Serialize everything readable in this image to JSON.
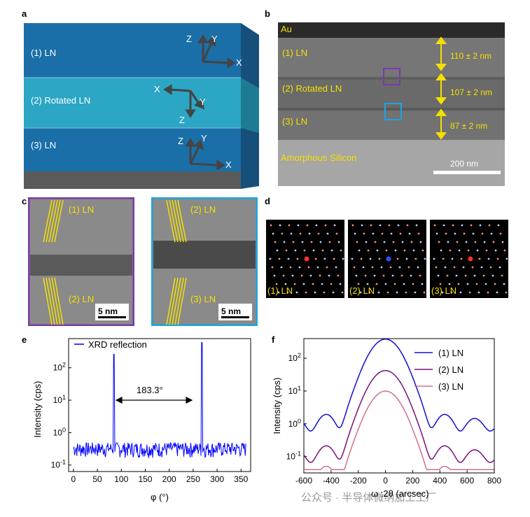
{
  "panels": {
    "a": "a",
    "b": "b",
    "c": "c",
    "d": "d",
    "e": "e",
    "f": "f"
  },
  "panel_a": {
    "layers": [
      "(1) LN",
      "(2) Rotated LN",
      "(3) LN"
    ],
    "axes": [
      "Z",
      "Y",
      "X"
    ]
  },
  "panel_b": {
    "top": "Au",
    "layers": [
      "(1) LN",
      "(2) Rotated LN",
      "(3) LN"
    ],
    "thickness": [
      "110 ± 2 nm",
      "107 ± 2 nm",
      "87 ± 2 nm"
    ],
    "substrate": "Amorphous Silicon",
    "scale_bar": "200 nm",
    "box_colors": {
      "purple": "#7a3aa8",
      "cyan": "#1aa6e0"
    }
  },
  "panel_c": {
    "left": {
      "top": "(1) LN",
      "bottom": "(2) LN",
      "scale": "5 nm"
    },
    "right": {
      "top": "(2) LN",
      "bottom": "(3) LN",
      "scale": "5 nm"
    }
  },
  "panel_d": {
    "labels": [
      "(1) LN",
      "(2) LN",
      "(3) LN"
    ]
  },
  "chart_data": [
    {
      "id": "e",
      "type": "line",
      "xlabel": "φ (°)",
      "ylabel": "Intensity (cps)",
      "x_ticks": [
        "0",
        "50",
        "100",
        "150",
        "200",
        "250",
        "300",
        "350"
      ],
      "y_ticks": [
        "10^-1",
        "10^0",
        "10^1",
        "10^2"
      ],
      "xlim": [
        -10,
        370
      ],
      "ylim_log10": [
        -1.2,
        2.9
      ],
      "legend": "XRD reflection",
      "annotation": "183.3°",
      "peaks": [
        {
          "x": 85,
          "y": 260
        },
        {
          "x": 268.3,
          "y": 600
        }
      ],
      "baseline": 0.3,
      "color": "#0000ff"
    },
    {
      "id": "f",
      "type": "line",
      "xlabel": "ω :2θ (arcsec)",
      "ylabel": "Intensity (cps)",
      "x_ticks": [
        "-600",
        "-400",
        "-200",
        "0",
        "200",
        "400",
        "600",
        "800"
      ],
      "y_ticks": [
        "10^-1",
        "10^0",
        "10^1",
        "10^2"
      ],
      "xlim": [
        -600,
        800
      ],
      "ylim_log10": [
        -1.5,
        2.6
      ],
      "series": [
        {
          "name": "(1) LN",
          "color": "#1010d0",
          "scale": 1.0
        },
        {
          "name": "(2) LN",
          "color": "#7a0f7a",
          "scale": 0.11
        },
        {
          "name": "(3) LN",
          "color": "#d07090",
          "scale": 0.026
        }
      ],
      "legend_position": "top-right"
    }
  ],
  "watermark": "公众号 · 半导体微纳加工工厂"
}
